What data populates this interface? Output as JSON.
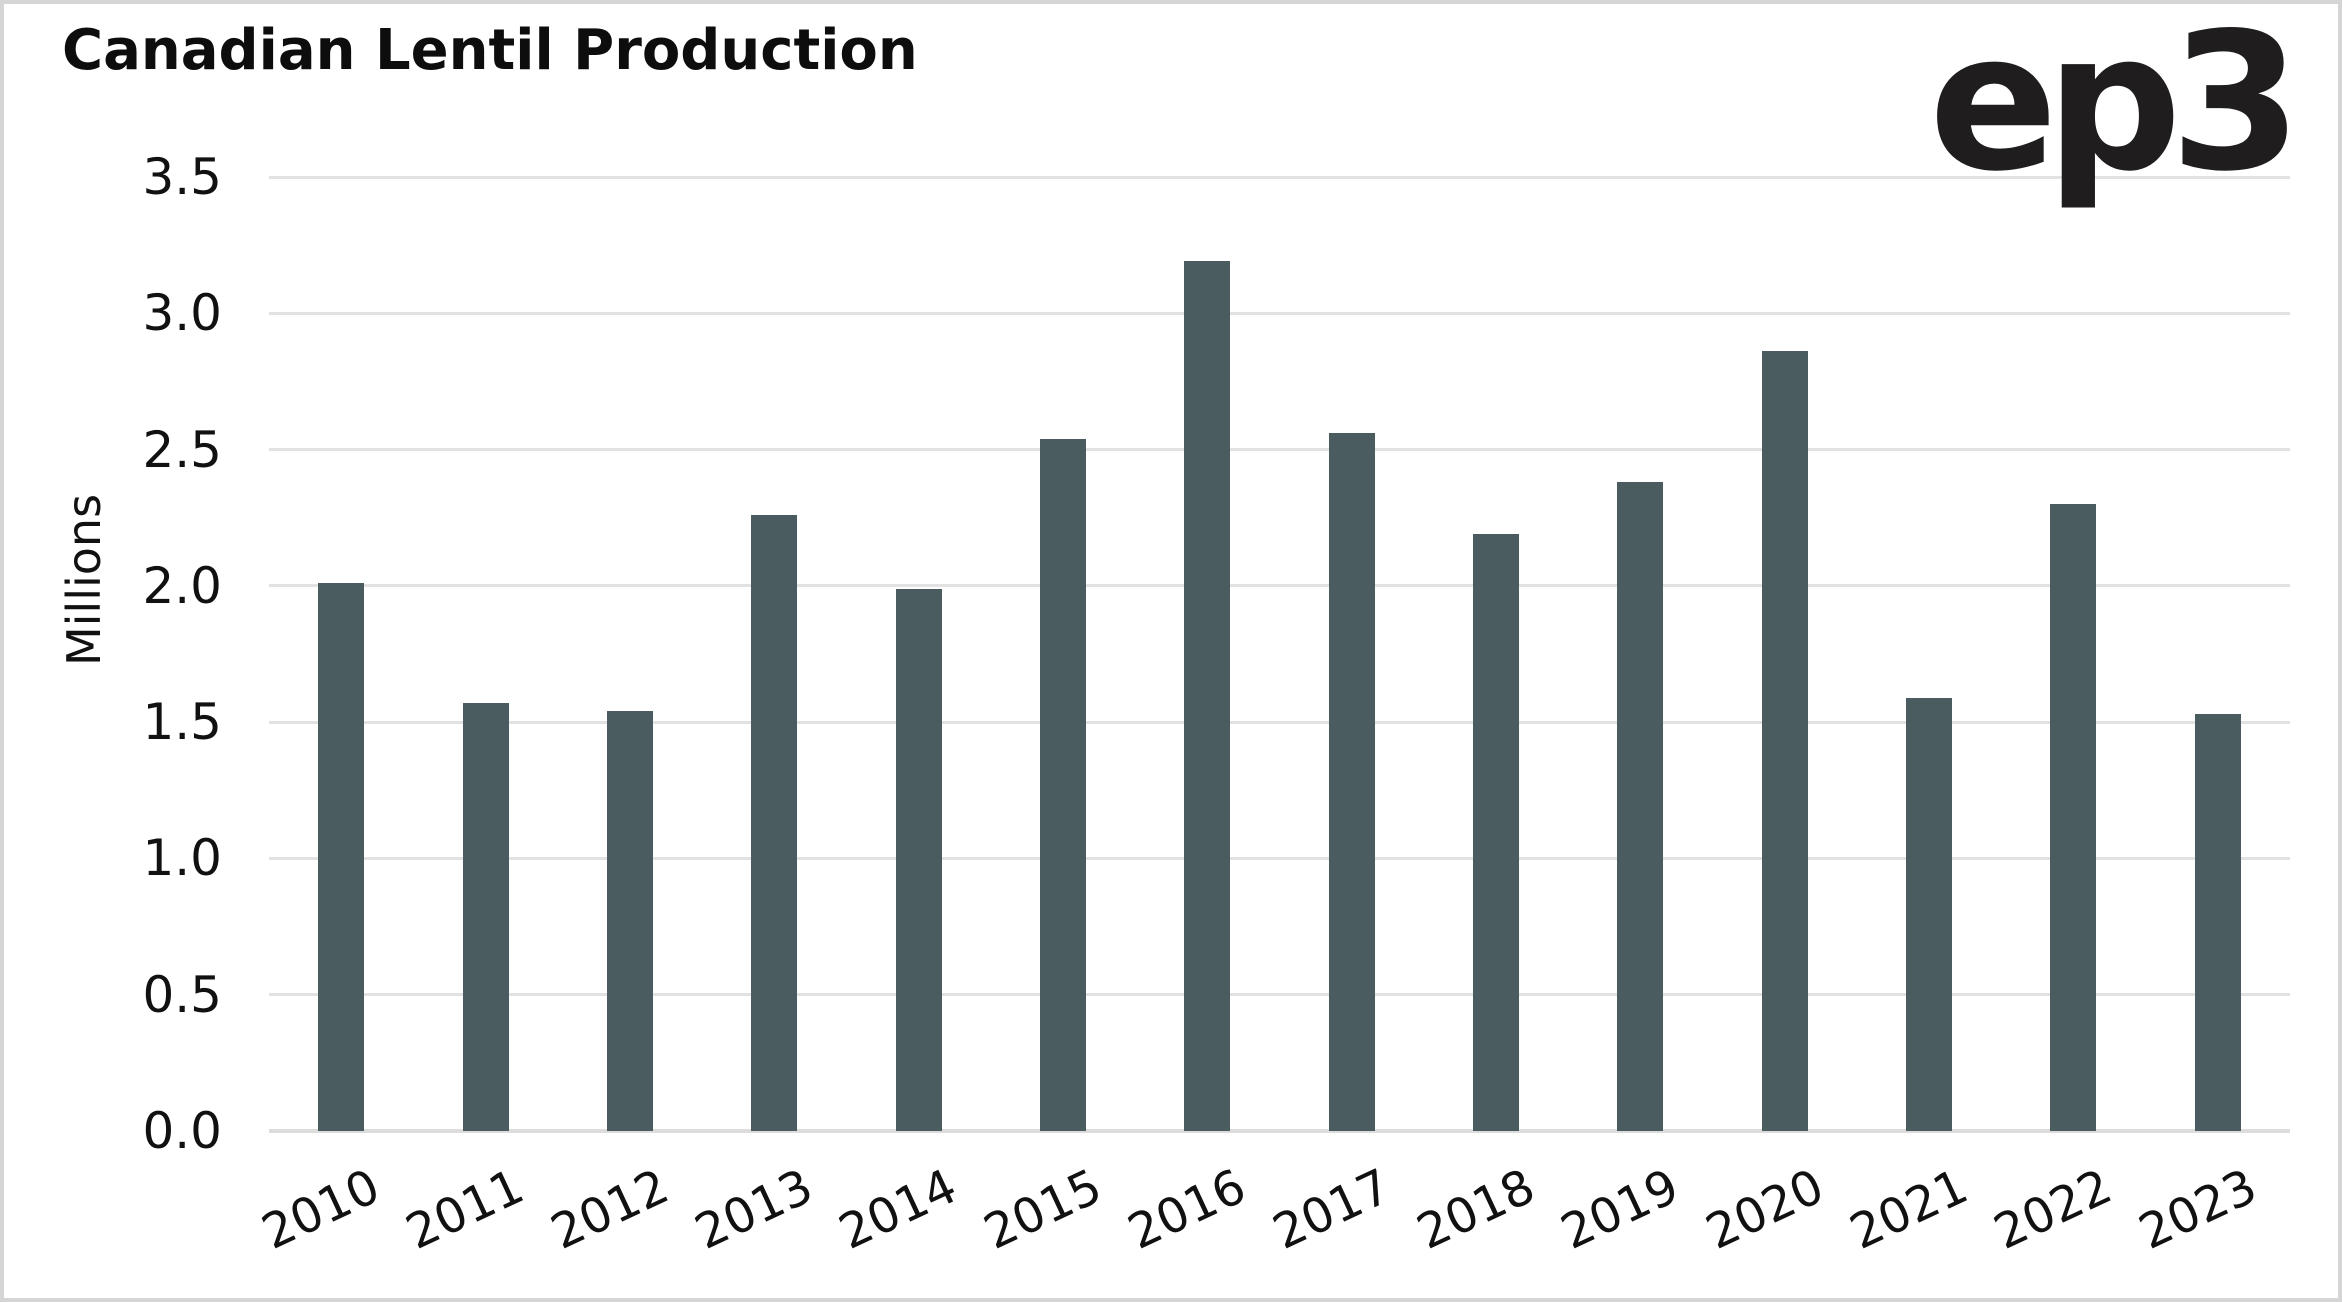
{
  "header": {
    "title": "Canadian Lentil Production",
    "logo": "ep3"
  },
  "chart_data": {
    "type": "bar",
    "title": "Canadian Lentil Production",
    "xlabel": "",
    "ylabel": "Millions",
    "categories": [
      "2010",
      "2011",
      "2012",
      "2013",
      "2014",
      "2015",
      "2016",
      "2017",
      "2018",
      "2019",
      "2020",
      "2021",
      "2022",
      "2023"
    ],
    "values": [
      2.01,
      1.57,
      1.54,
      2.26,
      1.99,
      2.54,
      3.19,
      2.56,
      2.19,
      2.38,
      2.86,
      1.59,
      2.3,
      1.53
    ],
    "ylim": [
      0,
      3.5
    ],
    "ytick_step": 0.5,
    "ytick_labels": [
      "0.0",
      "0.5",
      "1.0",
      "1.5",
      "2.0",
      "2.5",
      "3.0",
      "3.5"
    ],
    "grid": "horizontal",
    "legend": "none",
    "x_label_rotation_deg": -25,
    "bar_color": "#4a5c5f",
    "gridline_color": "#e2e2e2",
    "baseline_color": "#dcdcdc",
    "text_color": "#111111",
    "title_color": "#0d0d0d",
    "logo_color": "#1f1d1e",
    "background_color": "#ffffff",
    "frame_border_color": "#d5d5d5"
  }
}
